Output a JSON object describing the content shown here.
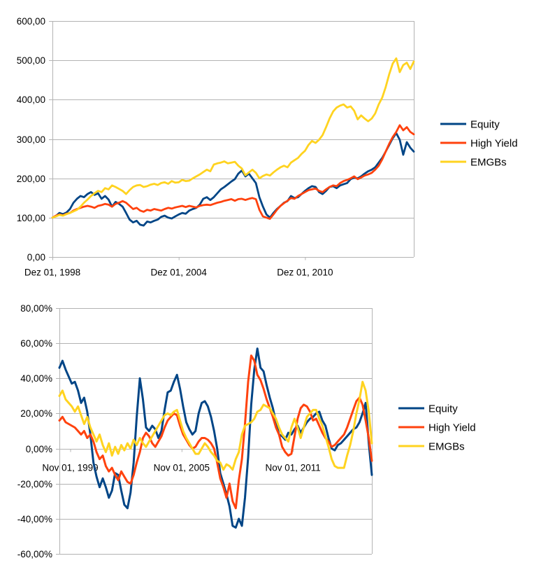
{
  "page": {
    "background": "#ffffff",
    "grid_color": "#b3b3b3",
    "text_color": "#000000"
  },
  "chart_data": [
    {
      "type": "line",
      "title": "",
      "description": "cumulative-index",
      "start_month": "1998-12",
      "step_months": 2,
      "grid": true,
      "y_axis": {
        "min": 0,
        "max": 600,
        "tick_values": [
          600,
          500,
          400,
          300,
          200,
          100,
          0
        ],
        "tick_labels": [
          "600,00",
          "500,00",
          "400,00",
          "300,00",
          "200,00",
          "100,00",
          "0,00"
        ]
      },
      "x_axis": {
        "labels": [
          {
            "text": "Dez 01, 1998",
            "month_offset": 0
          },
          {
            "text": "Dez 01, 2004",
            "month_offset": 72
          },
          {
            "text": "Dez 01, 2010",
            "month_offset": 144
          }
        ]
      },
      "legend": {
        "position": "right",
        "entries": [
          "Equity",
          "High Yield",
          "EMGBs"
        ]
      },
      "series": [
        {
          "name": "Equity",
          "color": "#004586",
          "values": [
            100,
            104,
            112,
            109,
            113,
            122,
            138,
            148,
            155,
            152,
            160,
            165,
            158,
            162,
            148,
            155,
            146,
            128,
            140,
            135,
            128,
            112,
            95,
            88,
            92,
            82,
            80,
            90,
            88,
            92,
            95,
            102,
            105,
            100,
            98,
            103,
            108,
            112,
            110,
            118,
            122,
            125,
            133,
            148,
            152,
            145,
            152,
            162,
            172,
            178,
            185,
            192,
            198,
            212,
            220,
            205,
            212,
            200,
            188,
            152,
            128,
            108,
            100,
            112,
            122,
            130,
            138,
            142,
            155,
            150,
            152,
            160,
            168,
            175,
            180,
            178,
            165,
            160,
            168,
            178,
            180,
            175,
            182,
            185,
            188,
            198,
            202,
            200,
            205,
            212,
            218,
            222,
            228,
            240,
            252,
            268,
            285,
            302,
            315,
            298,
            260,
            292,
            278,
            268
          ]
        },
        {
          "name": "High Yield",
          "color": "#FF420E",
          "values": [
            100,
            105,
            108,
            106,
            110,
            112,
            118,
            122,
            125,
            128,
            130,
            128,
            125,
            130,
            132,
            135,
            133,
            128,
            135,
            138,
            142,
            138,
            130,
            122,
            125,
            118,
            115,
            120,
            118,
            122,
            120,
            118,
            122,
            125,
            123,
            126,
            128,
            130,
            127,
            130,
            128,
            126,
            130,
            132,
            133,
            132,
            135,
            138,
            140,
            143,
            145,
            147,
            143,
            147,
            148,
            145,
            148,
            150,
            147,
            120,
            103,
            100,
            97,
            108,
            120,
            130,
            137,
            143,
            150,
            148,
            155,
            160,
            165,
            170,
            172,
            174,
            168,
            165,
            172,
            178,
            182,
            180,
            188,
            193,
            196,
            200,
            205,
            198,
            202,
            207,
            210,
            214,
            222,
            232,
            248,
            268,
            288,
            305,
            318,
            335,
            322,
            330,
            318,
            312
          ]
        },
        {
          "name": "EMGBs",
          "color": "#FFD320",
          "values": [
            100,
            103,
            107,
            105,
            109,
            112,
            116,
            120,
            128,
            138,
            146,
            155,
            162,
            168,
            165,
            175,
            172,
            182,
            178,
            173,
            168,
            160,
            170,
            178,
            182,
            183,
            178,
            180,
            184,
            186,
            183,
            188,
            190,
            186,
            193,
            189,
            190,
            196,
            193,
            194,
            200,
            205,
            210,
            216,
            222,
            218,
            235,
            238,
            240,
            243,
            238,
            240,
            242,
            232,
            225,
            208,
            215,
            222,
            214,
            200,
            206,
            210,
            207,
            215,
            222,
            228,
            232,
            228,
            240,
            246,
            252,
            262,
            270,
            285,
            295,
            290,
            298,
            310,
            330,
            352,
            370,
            380,
            385,
            388,
            380,
            383,
            372,
            350,
            360,
            352,
            345,
            352,
            365,
            388,
            405,
            432,
            465,
            492,
            505,
            470,
            488,
            494,
            478,
            497
          ]
        }
      ]
    },
    {
      "type": "line",
      "title": "",
      "description": "rolling-returns-percent",
      "start_month": "1999-04",
      "step_months": 2,
      "grid": true,
      "y_axis": {
        "min": -60,
        "max": 80,
        "tick_values": [
          80,
          60,
          40,
          20,
          0,
          -20,
          -40,
          -60
        ],
        "tick_labels": [
          "80,00%",
          "60,00%",
          "40,00%",
          "20,00%",
          "0,00%",
          "-20,00%",
          "-40,00%",
          "-60,00%"
        ]
      },
      "x_axis": {
        "labels": [
          {
            "text": "Nov 01, 1999",
            "month_offset": 7
          },
          {
            "text": "Nov 01, 2005",
            "month_offset": 79
          },
          {
            "text": "Nov 01, 2011",
            "month_offset": 151
          }
        ]
      },
      "legend": {
        "position": "right",
        "entries": [
          "Equity",
          "High Yield",
          "EMGBs"
        ]
      },
      "series": [
        {
          "name": "Equity",
          "color": "#004586",
          "values": [
            46,
            50,
            45,
            41,
            37,
            38,
            33,
            26,
            29,
            21,
            8,
            -8,
            -16,
            -22,
            -17,
            -22,
            -28,
            -24,
            -14,
            -15,
            -24,
            -32,
            -34,
            -25,
            -8,
            18,
            40,
            28,
            12,
            10,
            13,
            11,
            6,
            10,
            22,
            32,
            33,
            38,
            42,
            34,
            24,
            15,
            11,
            8,
            10,
            20,
            26,
            27,
            24,
            18,
            10,
            0,
            -14,
            -20,
            -26,
            -33,
            -44,
            -45,
            -40,
            -44,
            -28,
            -5,
            25,
            45,
            57,
            46,
            44,
            36,
            29,
            23,
            15,
            8,
            7,
            5,
            9,
            8,
            11,
            13,
            9,
            12,
            15,
            17,
            18,
            20,
            21,
            16,
            13,
            6,
            0,
            -1,
            2,
            3,
            5,
            7,
            9,
            11,
            12,
            15,
            20,
            26,
            3,
            -15
          ]
        },
        {
          "name": "High Yield",
          "color": "#FF420E",
          "values": [
            16,
            18,
            15,
            14,
            13,
            12,
            10,
            8,
            10,
            6,
            8,
            4,
            -2,
            -6,
            -4,
            -10,
            -13,
            -11,
            -15,
            -18,
            -13,
            -16,
            -19,
            -20,
            -15,
            -8,
            -2,
            6,
            9,
            7,
            3,
            1,
            4,
            7,
            12,
            16,
            18,
            20,
            19,
            13,
            8,
            5,
            2,
            0,
            1,
            4,
            6,
            6,
            5,
            3,
            0,
            -8,
            -17,
            -22,
            -28,
            -20,
            -30,
            -34,
            -18,
            -6,
            14,
            38,
            53,
            50,
            42,
            39,
            34,
            28,
            23,
            18,
            12,
            8,
            1,
            -2,
            -4,
            -3,
            7,
            17,
            23,
            25,
            24,
            21,
            16,
            17,
            13,
            9,
            6,
            4,
            1,
            2,
            4,
            6,
            8,
            12,
            17,
            22,
            27,
            29,
            25,
            16,
            6,
            -7
          ]
        },
        {
          "name": "EMGBs",
          "color": "#FFD320",
          "values": [
            30,
            33,
            28,
            26,
            24,
            21,
            24,
            19,
            14,
            18,
            12,
            8,
            4,
            8,
            2,
            -2,
            3,
            -4,
            1,
            -3,
            2,
            -1,
            3,
            0,
            5,
            2,
            6,
            3,
            1,
            4,
            7,
            10,
            13,
            16,
            19,
            20,
            19,
            21,
            22,
            16,
            10,
            6,
            3,
            0,
            -3,
            -3,
            0,
            3,
            1,
            -2,
            -4,
            -7,
            -8,
            -12,
            -9,
            -10,
            -12,
            -6,
            -2,
            8,
            13,
            14,
            15,
            17,
            21,
            22,
            25,
            24,
            23,
            20,
            17,
            12,
            8,
            6,
            4,
            12,
            17,
            12,
            6,
            12,
            18,
            20,
            22,
            22,
            17,
            13,
            7,
            1,
            -6,
            -10,
            -11,
            -11,
            -11,
            -4,
            2,
            10,
            20,
            28,
            38,
            33,
            21,
            3
          ]
        }
      ]
    }
  ]
}
